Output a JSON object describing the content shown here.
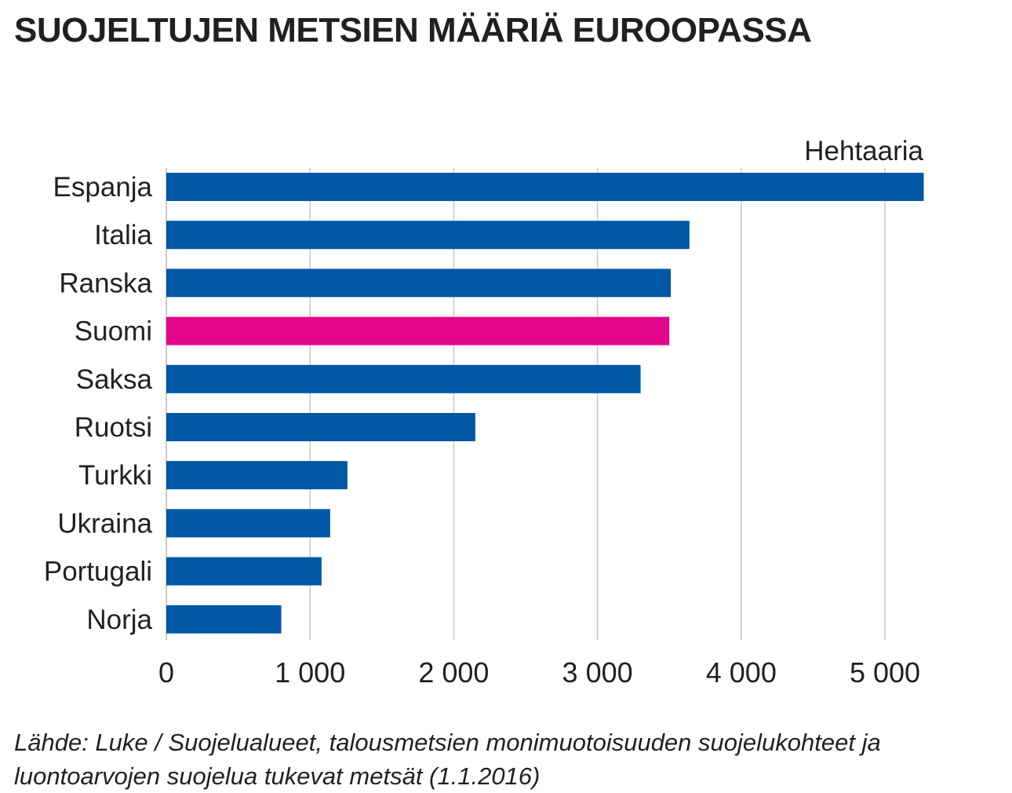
{
  "title": "SUOJELTUJEN METSIEN MÄÄRIÄ EUROOPASSA",
  "source": "Lähde: Luke / Suojelualueet, talousmetsien monimuotoisuuden suojelukohteet ja luontoarvojen suojelua tukevat metsät (1.1.2016)",
  "colors": {
    "bar": "#0057a4",
    "highlight": "#e2068c",
    "grid": "#c8c8c8",
    "text": "#231f20"
  },
  "chart_data": {
    "type": "bar",
    "orientation": "horizontal",
    "title": "SUOJELTUJEN METSIEN MÄÄRIÄ EUROOPASSA",
    "unit_label": "Hehtaaria",
    "categories": [
      "Espanja",
      "Italia",
      "Ranska",
      "Suomi",
      "Saksa",
      "Ruotsi",
      "Turkki",
      "Ukraina",
      "Portugali",
      "Norja"
    ],
    "values": [
      5270,
      3640,
      3510,
      3500,
      3300,
      2150,
      1260,
      1140,
      1080,
      800
    ],
    "highlight_category": "Suomi",
    "xlim": [
      0,
      5270
    ],
    "ticks": [
      0,
      1000,
      2000,
      3000,
      4000,
      5000
    ],
    "tick_labels": [
      "0",
      "1 000",
      "2 000",
      "3 000",
      "4 000",
      "5 000"
    ],
    "grid": true,
    "legend": "none"
  }
}
